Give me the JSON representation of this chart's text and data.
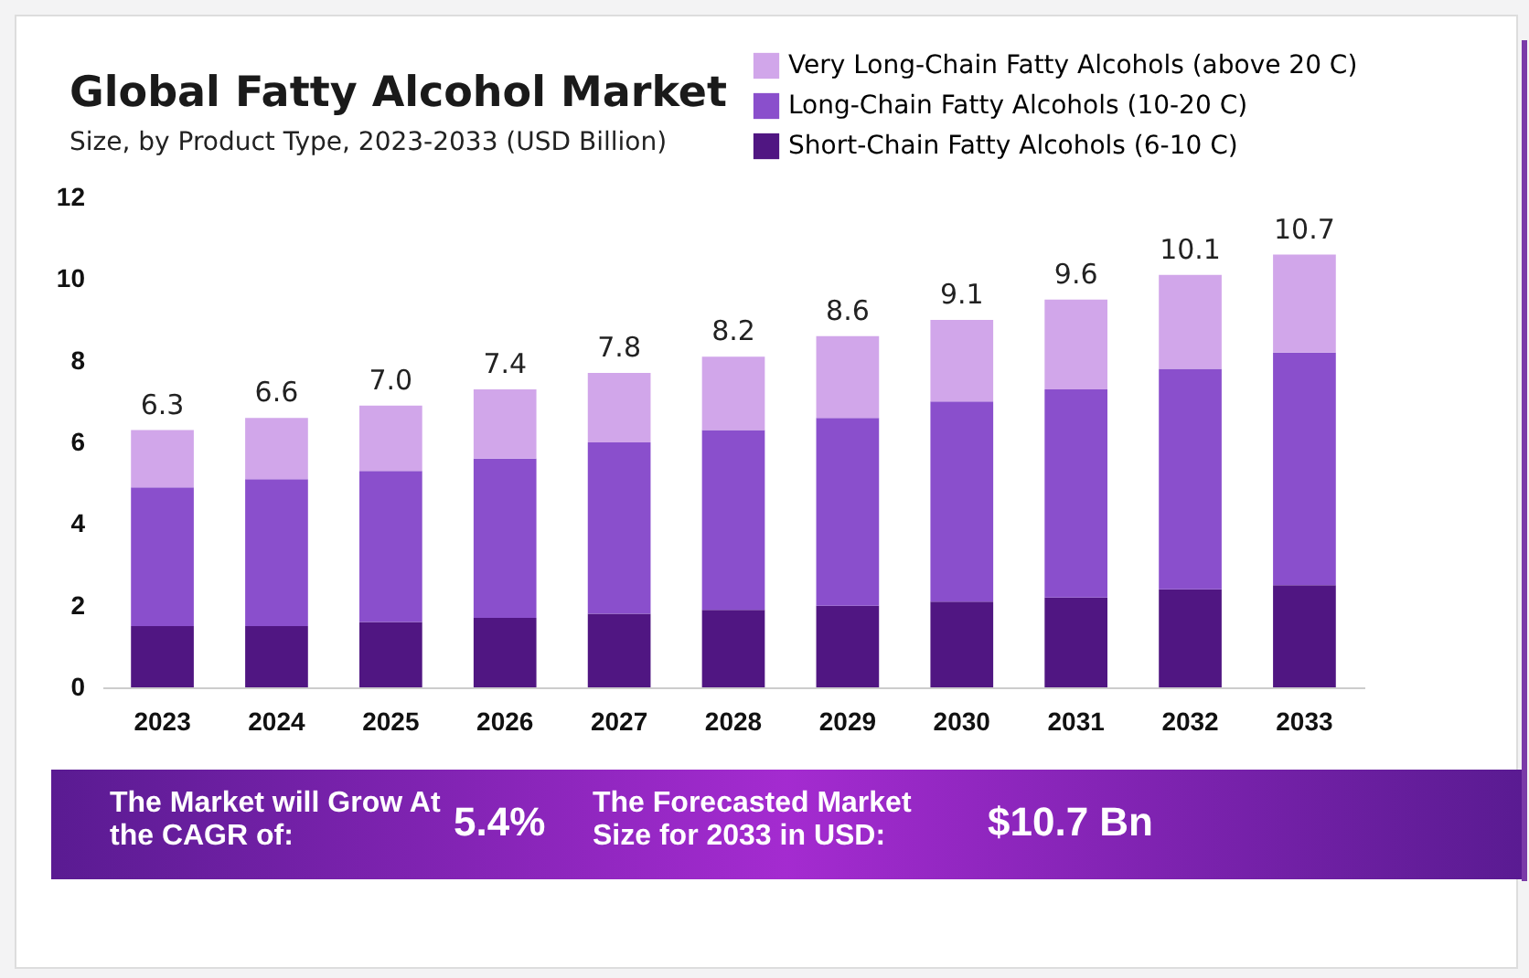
{
  "chart_data": {
    "type": "bar",
    "title": "Global Fatty Alcohol Market",
    "subtitle": "Size, by Product Type, 2023-2033 (USD Billion)",
    "categories": [
      "2023",
      "2024",
      "2025",
      "2026",
      "2027",
      "2028",
      "2029",
      "2030",
      "2031",
      "2032",
      "2033"
    ],
    "stacked": true,
    "series": [
      {
        "name": "Short-Chain Fatty Alcohols (6-10 C)",
        "color": "#501682",
        "values": [
          1.5,
          1.5,
          1.6,
          1.7,
          1.8,
          1.9,
          2.0,
          2.1,
          2.2,
          2.4,
          2.5
        ]
      },
      {
        "name": "Long-Chain Fatty Alcohols (10-20 C)",
        "color": "#8a4fcc",
        "values": [
          3.4,
          3.6,
          3.7,
          3.9,
          4.2,
          4.4,
          4.6,
          4.9,
          5.1,
          5.4,
          5.7
        ]
      },
      {
        "name": "Very Long-Chain Fatty Alcohols (above 20 C)",
        "color": "#d1a6ea",
        "values": [
          1.4,
          1.5,
          1.6,
          1.7,
          1.7,
          1.8,
          2.0,
          2.0,
          2.2,
          2.3,
          2.4
        ]
      }
    ],
    "totals": [
      "6.3",
      "6.6",
      "7.0",
      "7.4",
      "7.8",
      "8.2",
      "8.6",
      "9.1",
      "9.6",
      "10.1",
      "10.7"
    ],
    "ylim": [
      0,
      12
    ],
    "yticks": [
      0,
      2,
      4,
      6,
      8,
      10,
      12
    ],
    "grid": false,
    "legend": "top right",
    "annotations": [
      "The Market will Grow At the CAGR of:",
      "5.4%",
      "The Forecasted Market Size for 2033 in USD:",
      "$10.7 Bn"
    ]
  }
}
